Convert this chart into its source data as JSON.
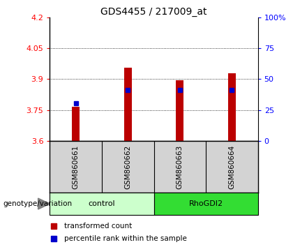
{
  "title": "GDS4455 / 217009_at",
  "samples": [
    "GSM860661",
    "GSM860662",
    "GSM860663",
    "GSM860664"
  ],
  "red_values": [
    3.765,
    3.955,
    3.893,
    3.928
  ],
  "blue_values": [
    3.782,
    3.848,
    3.848,
    3.848
  ],
  "ylim": [
    3.6,
    4.2
  ],
  "yticks": [
    3.6,
    3.75,
    3.9,
    4.05,
    4.2
  ],
  "y2ticks": [
    0,
    25,
    50,
    75,
    100
  ],
  "y2labels": [
    "0",
    "25",
    "50",
    "75",
    "100%"
  ],
  "control_label": "control",
  "rhodgi2_label": "RhoGDI2",
  "genotype_label": "genotype/variation",
  "legend_red": "transformed count",
  "legend_blue": "percentile rank within the sample",
  "bar_bottom": 3.6,
  "bar_color": "#bb0000",
  "dot_color": "#0000cc",
  "control_bg": "#ccffcc",
  "rhodgi2_bg": "#33dd33",
  "label_area_bg": "#d3d3d3",
  "bar_width": 0.15
}
